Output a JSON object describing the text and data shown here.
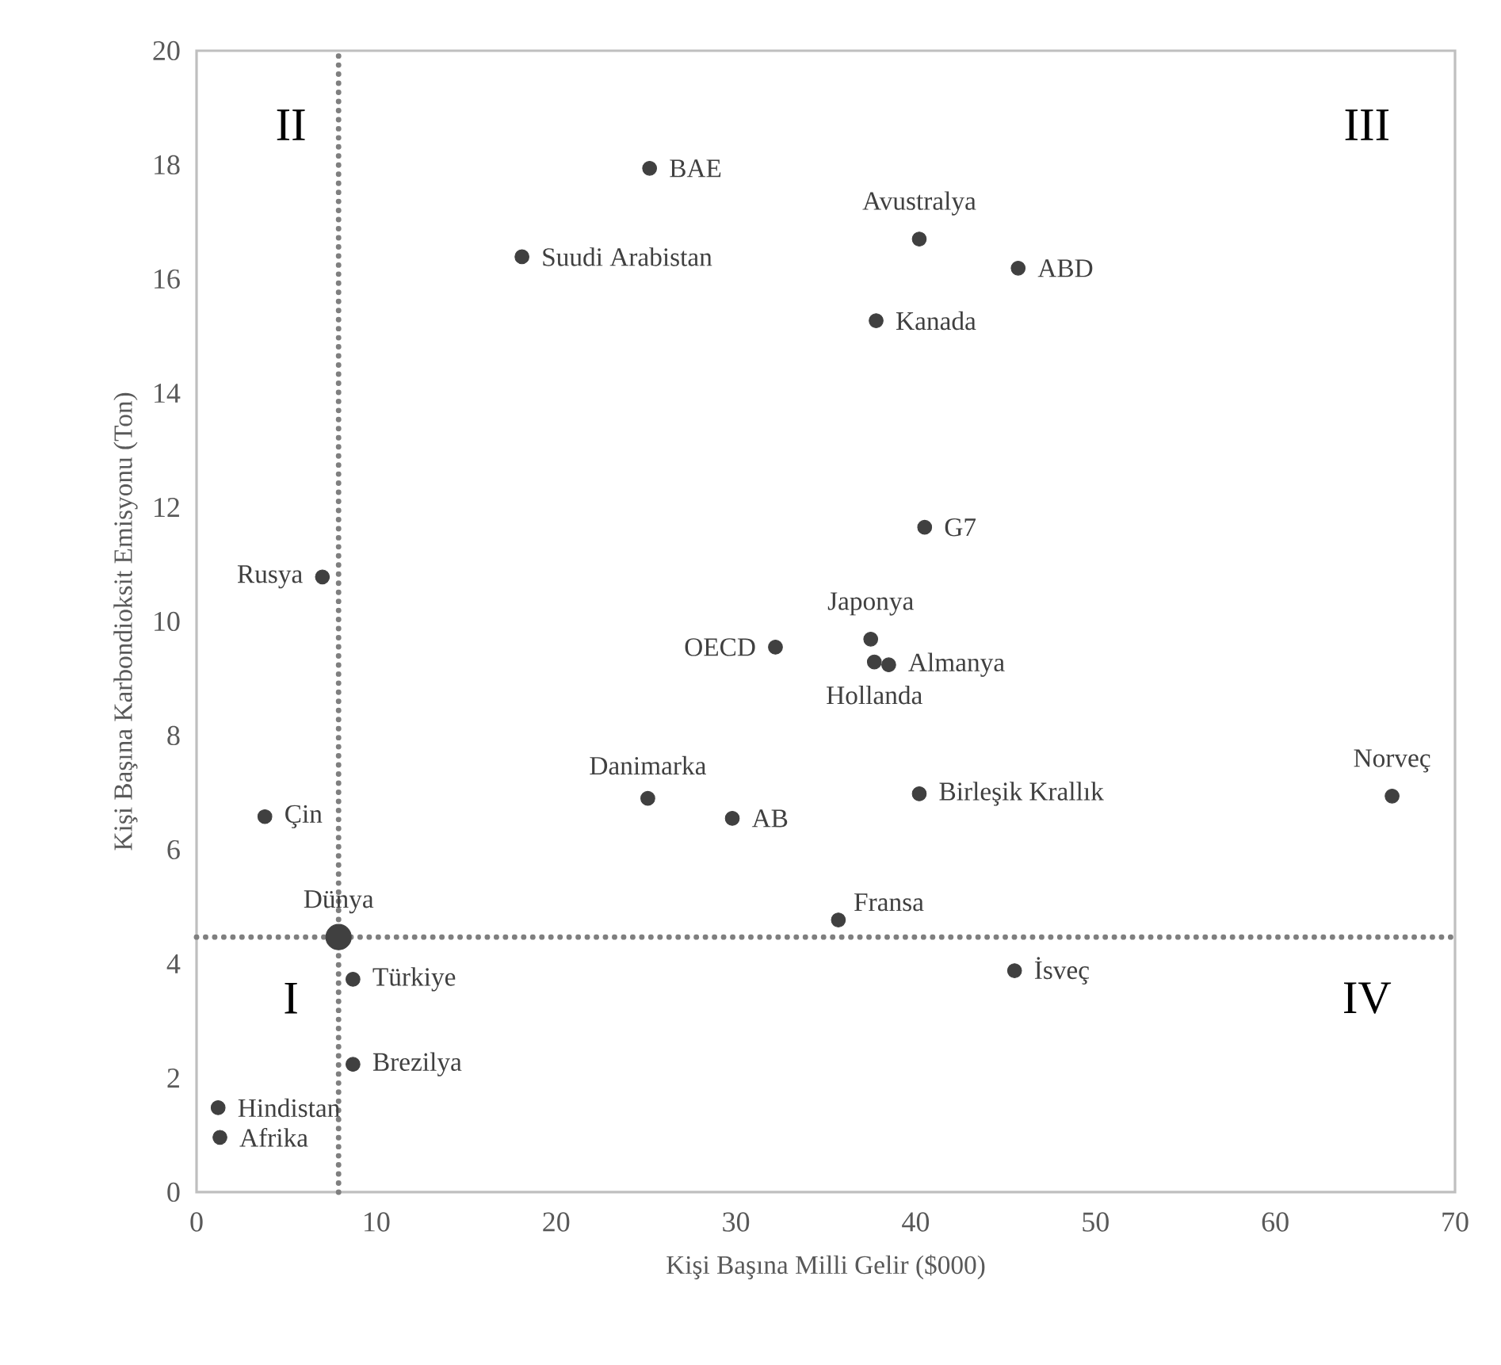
{
  "chart_data": {
    "type": "scatter",
    "xlabel": "Kişi Başına Milli Gelir ($000)",
    "ylabel": "Kişi Başına Karbondioksit Emisyonu (Ton)",
    "xlim": [
      0,
      70
    ],
    "ylim": [
      0,
      20
    ],
    "xticks": [
      0,
      10,
      20,
      30,
      40,
      50,
      60,
      70
    ],
    "yticks": [
      0,
      2,
      4,
      6,
      8,
      10,
      12,
      14,
      16,
      18,
      20
    ],
    "marker": "circle",
    "series": [
      {
        "color": "#404040",
        "x": [
          25.2,
          18.1,
          7.0,
          32.2,
          40.2,
          45.7,
          37.8,
          40.5,
          37.5,
          38.5,
          37.7,
          3.8,
          25.1,
          29.8,
          8.7,
          8.7,
          1.2,
          1.3,
          40.2,
          66.5,
          35.7,
          45.5
        ],
        "values": [
          17.94,
          16.39,
          10.78,
          9.55,
          16.7,
          16.19,
          15.27,
          11.65,
          9.69,
          9.24,
          9.29,
          6.58,
          6.9,
          6.55,
          3.73,
          2.24,
          1.48,
          0.96,
          6.98,
          6.94,
          4.77,
          3.88
        ]
      },
      {
        "color": "#404040",
        "x": [
          7.9
        ],
        "values": [
          4.47
        ]
      }
    ],
    "ref_lines": [
      {
        "axis": "x",
        "value": 7.9,
        "color": "#7f7f7f",
        "line_style": "dotted"
      },
      {
        "axis": "y",
        "value": 4.47,
        "color": "#7f7f7f",
        "line_style": "dotted"
      }
    ],
    "annotations": [
      "I",
      "II",
      "III",
      "IV",
      {
        "text": "BAE",
        "x": 25.2,
        "y": 17.94
      },
      {
        "text": "Suudi Arabistan",
        "x": 18.1,
        "y": 16.39
      },
      {
        "text": "Rusya",
        "x": 7.0,
        "y": 10.78
      },
      {
        "text": "OECD",
        "x": 32.2,
        "y": 9.55
      },
      {
        "text": "Avustralya",
        "x": 40.2,
        "y": 16.7
      },
      {
        "text": "ABD",
        "x": 45.7,
        "y": 16.19
      },
      {
        "text": "Kanada",
        "x": 37.8,
        "y": 15.27
      },
      {
        "text": "G7",
        "x": 40.5,
        "y": 11.65
      },
      {
        "text": "Japonya",
        "x": 37.5,
        "y": 9.69
      },
      {
        "text": "Almanya",
        "x": 38.5,
        "y": 9.24
      },
      {
        "text": "Hollanda",
        "x": 37.7,
        "y": 9.29
      },
      {
        "text": "Çin",
        "x": 3.8,
        "y": 6.58
      },
      {
        "text": "Danimarka",
        "x": 25.1,
        "y": 6.9
      },
      {
        "text": "AB",
        "x": 29.8,
        "y": 6.55
      },
      {
        "text": "Türkiye",
        "x": 8.7,
        "y": 3.73
      },
      {
        "text": "Brezilya",
        "x": 8.7,
        "y": 2.24
      },
      {
        "text": "Hindistan",
        "x": 1.2,
        "y": 1.48
      },
      {
        "text": "Afrika",
        "x": 1.3,
        "y": 0.96
      },
      {
        "text": "Birleşik Krallık",
        "x": 40.2,
        "y": 6.98
      },
      {
        "text": "Norveç",
        "x": 66.5,
        "y": 6.94
      },
      {
        "text": "Fransa",
        "x": 35.7,
        "y": 4.77
      },
      {
        "text": "İsveç",
        "x": 45.5,
        "y": 3.88
      },
      {
        "text": "Dünya",
        "x": 7.9,
        "y": 4.47
      }
    ]
  }
}
